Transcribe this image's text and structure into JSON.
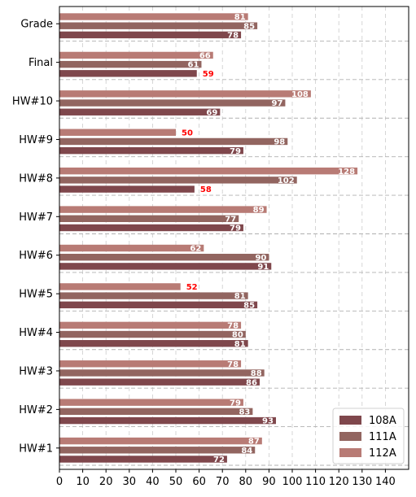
{
  "chart_data": {
    "type": "bar",
    "orientation": "horizontal",
    "categories": [
      "HW#1",
      "HW#2",
      "HW#3",
      "HW#4",
      "HW#5",
      "HW#6",
      "HW#7",
      "HW#8",
      "HW#9",
      "HW#10",
      "Final",
      "Grade"
    ],
    "series": [
      {
        "name": "108A",
        "color": "#7f474c",
        "values": [
          72,
          93,
          86,
          81,
          85,
          91,
          79,
          58,
          79,
          69,
          59,
          78
        ]
      },
      {
        "name": "111A",
        "color": "#926560",
        "values": [
          84,
          83,
          88,
          80,
          81,
          90,
          77,
          102,
          98,
          97,
          61,
          85
        ]
      },
      {
        "name": "112A",
        "color": "#b87b75",
        "values": [
          87,
          79,
          78,
          78,
          52,
          62,
          89,
          128,
          50,
          108,
          66,
          81
        ]
      }
    ],
    "xlim": [
      0,
      150
    ],
    "xticks": [
      0,
      10,
      20,
      30,
      40,
      50,
      60,
      70,
      80,
      90,
      100,
      110,
      120,
      130,
      140
    ],
    "low_threshold": 60,
    "low_label_color": "#ff0000",
    "label_color": "#ffffff",
    "grid": true,
    "legend_position": "lower-right",
    "title": "",
    "xlabel": "",
    "ylabel": ""
  }
}
